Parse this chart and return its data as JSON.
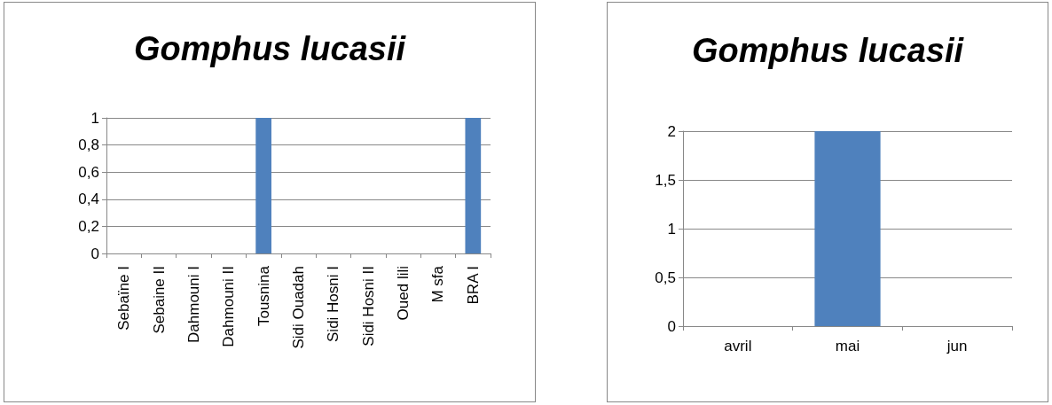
{
  "chart_data": [
    {
      "type": "bar",
      "title": "Gomphus lucasii",
      "categories": [
        "Sebaïne I",
        "Sebaine II",
        "Dahmouni I",
        "Dahmouni II",
        "Tousnina",
        "Sidi Ouadah",
        "Sidi Hosni I",
        "Sidi Hosni II",
        "Oued lili",
        "M sfa",
        "BRA I"
      ],
      "values": [
        0,
        0,
        0,
        0,
        1,
        0,
        0,
        0,
        0,
        0,
        1
      ],
      "color": "#4f81bd",
      "ylim": [
        0,
        1
      ],
      "yticks": [
        0,
        {
          "value": 0.2,
          "label": "0,2"
        },
        {
          "value": 0.4,
          "label": "0,4"
        },
        {
          "value": 0.6,
          "label": "0,6"
        },
        {
          "value": 0.8,
          "label": "0,8"
        },
        1
      ],
      "grid": "y"
    },
    {
      "type": "bar",
      "title": "Gomphus lucasii",
      "categories": [
        "avril",
        "mai",
        "jun"
      ],
      "values": [
        0,
        2,
        0
      ],
      "color": "#4f81bd",
      "ylim": [
        0,
        2
      ],
      "yticks": [
        0,
        {
          "value": 0.5,
          "label": "0,5"
        },
        1,
        {
          "value": 1.5,
          "label": "1,5"
        },
        2
      ],
      "grid": "y"
    }
  ]
}
